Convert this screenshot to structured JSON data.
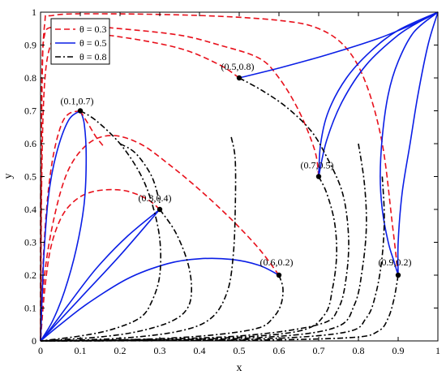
{
  "chart_data": {
    "type": "line",
    "title": "",
    "xlabel": "x",
    "ylabel": "y",
    "xlim": [
      0,
      1
    ],
    "ylim": [
      0,
      1
    ],
    "xticks": [
      0,
      0.1,
      0.2,
      0.3,
      0.4,
      0.5,
      0.6,
      0.7,
      0.8,
      0.9,
      1
    ],
    "yticks": [
      0,
      0.1,
      0.2,
      0.3,
      0.4,
      0.5,
      0.6,
      0.7,
      0.8,
      0.9,
      1
    ],
    "xtick_labels": [
      "0",
      "0.1",
      "0.2",
      "0.3",
      "0.4",
      "0.5",
      "0.6",
      "0.7",
      "0.8",
      "0.9",
      "1"
    ],
    "ytick_labels": [
      "0",
      "0.1",
      "0.2",
      "0.3",
      "0.4",
      "0.5",
      "0.6",
      "0.7",
      "0.8",
      "0.9",
      "1"
    ],
    "grid": false,
    "legend": {
      "position": "top-left",
      "entries": [
        {
          "label": "θ = 0.3",
          "color": "#e8101b",
          "style": "dashed"
        },
        {
          "label": "θ = 0.5",
          "color": "#0a1ee6",
          "style": "solid"
        },
        {
          "label": "θ = 0.8",
          "color": "#000000",
          "style": "dashdot"
        }
      ]
    },
    "points": [
      {
        "x": 0.1,
        "y": 0.7,
        "label": "(0.1,0.7)"
      },
      {
        "x": 0.3,
        "y": 0.4,
        "label": "(0.3,0.4)"
      },
      {
        "x": 0.5,
        "y": 0.8,
        "label": "(0.5,0.8)"
      },
      {
        "x": 0.6,
        "y": 0.2,
        "label": "(0.6,0.2)"
      },
      {
        "x": 0.7,
        "y": 0.5,
        "label": "(0.7,0.5)"
      },
      {
        "x": 0.9,
        "y": 0.2,
        "label": "(0.9,0.2)"
      }
    ],
    "series": [
      {
        "theta": 0.3,
        "color": "#e8101b",
        "style": "dashed",
        "curves": [
          [
            [
              0.1,
              0.7
            ],
            [
              0.07,
              0.69
            ],
            [
              0.05,
              0.65
            ],
            [
              0.03,
              0.55
            ],
            [
              0.015,
              0.4
            ],
            [
              0.005,
              0.2
            ],
            [
              0,
              0
            ]
          ],
          [
            [
              0.3,
              0.4
            ],
            [
              0.27,
              0.43
            ],
            [
              0.22,
              0.455
            ],
            [
              0.17,
              0.46
            ],
            [
              0.12,
              0.45
            ],
            [
              0.08,
              0.42
            ],
            [
              0.05,
              0.37
            ],
            [
              0.025,
              0.28
            ],
            [
              0.01,
              0.15
            ],
            [
              0,
              0
            ]
          ],
          [
            [
              0.6,
              0.2
            ],
            [
              0.55,
              0.28
            ],
            [
              0.48,
              0.37
            ],
            [
              0.4,
              0.46
            ],
            [
              0.32,
              0.54
            ],
            [
              0.25,
              0.6
            ],
            [
              0.18,
              0.625
            ],
            [
              0.12,
              0.6
            ],
            [
              0.07,
              0.52
            ],
            [
              0.035,
              0.38
            ],
            [
              0.01,
              0.2
            ],
            [
              0,
              0
            ]
          ],
          [
            [
              0.5,
              0.8
            ],
            [
              0.45,
              0.84
            ],
            [
              0.35,
              0.89
            ],
            [
              0.2,
              0.925
            ],
            [
              0.1,
              0.935
            ],
            [
              0.05,
              0.93
            ],
            [
              0.025,
              0.9
            ],
            [
              0.01,
              0.78
            ],
            [
              0.003,
              0.5
            ],
            [
              0,
              0
            ]
          ],
          [
            [
              0.7,
              0.5
            ],
            [
              0.69,
              0.58
            ],
            [
              0.65,
              0.7
            ],
            [
              0.6,
              0.8
            ],
            [
              0.55,
              0.86
            ],
            [
              0.45,
              0.9
            ],
            [
              0.35,
              0.93
            ],
            [
              0.2,
              0.95
            ],
            [
              0.08,
              0.96
            ],
            [
              0.03,
              0.955
            ],
            [
              0.01,
              0.93
            ],
            [
              0.003,
              0.8
            ],
            [
              0,
              0.4
            ],
            [
              0,
              0
            ]
          ],
          [
            [
              0.9,
              0.2
            ],
            [
              0.885,
              0.36
            ],
            [
              0.86,
              0.6
            ],
            [
              0.82,
              0.78
            ],
            [
              0.77,
              0.89
            ],
            [
              0.7,
              0.95
            ],
            [
              0.6,
              0.975
            ],
            [
              0.4,
              0.99
            ],
            [
              0.15,
              0.995
            ],
            [
              0.03,
              0.99
            ],
            [
              0.01,
              0.96
            ],
            [
              0.003,
              0.7
            ],
            [
              0,
              0
            ]
          ]
        ]
      },
      {
        "theta": 0.5,
        "color": "#0a1ee6",
        "style": "solid",
        "curves": [
          [
            [
              0.1,
              0.7
            ],
            [
              0.11,
              0.66
            ],
            [
              0.115,
              0.56
            ],
            [
              0.11,
              0.42
            ],
            [
              0.09,
              0.28
            ],
            [
              0.06,
              0.15
            ],
            [
              0.03,
              0.06
            ],
            [
              0,
              0
            ]
          ],
          [
            [
              0.1,
              0.7
            ],
            [
              0.07,
              0.67
            ],
            [
              0.04,
              0.57
            ],
            [
              0.02,
              0.44
            ],
            [
              0.008,
              0.25
            ],
            [
              0,
              0
            ]
          ],
          [
            [
              0.3,
              0.4
            ],
            [
              0.2,
              0.26
            ],
            [
              0.1,
              0.13
            ],
            [
              0,
              0
            ]
          ],
          [
            [
              0.3,
              0.4
            ],
            [
              0.22,
              0.32
            ],
            [
              0.14,
              0.22
            ],
            [
              0.07,
              0.11
            ],
            [
              0.03,
              0.045
            ],
            [
              0,
              0
            ]
          ],
          [
            [
              0.6,
              0.2
            ],
            [
              0.55,
              0.23
            ],
            [
              0.48,
              0.248
            ],
            [
              0.4,
              0.25
            ],
            [
              0.32,
              0.235
            ],
            [
              0.22,
              0.19
            ],
            [
              0.12,
              0.115
            ],
            [
              0.05,
              0.05
            ],
            [
              0,
              0
            ]
          ],
          [
            [
              0.5,
              0.8
            ],
            [
              0.6,
              0.83
            ],
            [
              0.72,
              0.87
            ],
            [
              0.85,
              0.92
            ],
            [
              0.95,
              0.97
            ],
            [
              1,
              1
            ]
          ],
          [
            [
              0.7,
              0.5
            ],
            [
              0.72,
              0.61
            ],
            [
              0.76,
              0.73
            ],
            [
              0.82,
              0.84
            ],
            [
              0.9,
              0.93
            ],
            [
              0.96,
              0.975
            ],
            [
              1,
              1
            ]
          ],
          [
            [
              0.7,
              0.5
            ],
            [
              0.705,
              0.6
            ],
            [
              0.725,
              0.7
            ],
            [
              0.77,
              0.8
            ],
            [
              0.83,
              0.88
            ],
            [
              0.9,
              0.945
            ],
            [
              1,
              1
            ]
          ],
          [
            [
              0.9,
              0.2
            ],
            [
              0.89,
              0.24
            ],
            [
              0.875,
              0.3
            ],
            [
              0.86,
              0.4
            ],
            [
              0.855,
              0.5
            ],
            [
              0.86,
              0.62
            ],
            [
              0.875,
              0.75
            ],
            [
              0.9,
              0.85
            ],
            [
              0.94,
              0.94
            ],
            [
              1,
              1
            ]
          ],
          [
            [
              0.9,
              0.2
            ],
            [
              0.9,
              0.3
            ],
            [
              0.91,
              0.45
            ],
            [
              0.93,
              0.6
            ],
            [
              0.95,
              0.75
            ],
            [
              0.975,
              0.9
            ],
            [
              1,
              1
            ]
          ]
        ]
      },
      {
        "theta": 0.8,
        "color": "#000000",
        "style": "dashdot",
        "curves": [
          [
            [
              0.1,
              0.7
            ],
            [
              0.14,
              0.67
            ],
            [
              0.2,
              0.6
            ],
            [
              0.25,
              0.51
            ],
            [
              0.28,
              0.42
            ],
            [
              0.3,
              0.31
            ],
            [
              0.3,
              0.2
            ],
            [
              0.28,
              0.12
            ],
            [
              0.25,
              0.07
            ],
            [
              0.18,
              0.035
            ],
            [
              0.1,
              0.015
            ],
            [
              0,
              0
            ]
          ],
          [
            [
              0.3,
              0.4
            ],
            [
              0.34,
              0.33
            ],
            [
              0.37,
              0.24
            ],
            [
              0.38,
              0.16
            ],
            [
              0.37,
              0.1
            ],
            [
              0.33,
              0.06
            ],
            [
              0.25,
              0.03
            ],
            [
              0.15,
              0.012
            ],
            [
              0,
              0
            ]
          ],
          [
            [
              0.5,
              0.8
            ],
            [
              0.56,
              0.76
            ],
            [
              0.62,
              0.71
            ],
            [
              0.68,
              0.64
            ],
            [
              0.72,
              0.56
            ],
            [
              0.76,
              0.45
            ],
            [
              0.775,
              0.32
            ],
            [
              0.77,
              0.2
            ],
            [
              0.75,
              0.1
            ],
            [
              0.7,
              0.05
            ],
            [
              0.5,
              0.015
            ],
            [
              0.2,
              0.003
            ],
            [
              0,
              0
            ]
          ],
          [
            [
              0.7,
              0.5
            ],
            [
              0.72,
              0.45
            ],
            [
              0.74,
              0.36
            ],
            [
              0.745,
              0.26
            ],
            [
              0.735,
              0.16
            ],
            [
              0.715,
              0.08
            ],
            [
              0.65,
              0.03
            ],
            [
              0.45,
              0.008
            ],
            [
              0.2,
              0.002
            ],
            [
              0,
              0
            ]
          ],
          [
            [
              0.6,
              0.2
            ],
            [
              0.61,
              0.16
            ],
            [
              0.605,
              0.11
            ],
            [
              0.585,
              0.07
            ],
            [
              0.55,
              0.04
            ],
            [
              0.45,
              0.02
            ],
            [
              0.3,
              0.007
            ],
            [
              0.1,
              0.001
            ],
            [
              0,
              0
            ]
          ],
          [
            [
              0.9,
              0.2
            ],
            [
              0.89,
              0.13
            ],
            [
              0.875,
              0.07
            ],
            [
              0.85,
              0.03
            ],
            [
              0.78,
              0.01
            ],
            [
              0.5,
              0.002
            ],
            [
              0,
              0
            ]
          ]
        ]
      }
    ],
    "extra_curves": [
      {
        "color": "#e8101b",
        "style": "dashed",
        "points": [
          [
            0.1,
            0.7
          ],
          [
            0.12,
            0.66
          ],
          [
            0.14,
            0.62
          ],
          [
            0.16,
            0.59
          ]
        ]
      },
      {
        "color": "#000000",
        "style": "dashdot",
        "points": [
          [
            0.48,
            0.62
          ],
          [
            0.49,
            0.55
          ],
          [
            0.49,
            0.4
          ],
          [
            0.485,
            0.26
          ],
          [
            0.47,
            0.15
          ],
          [
            0.43,
            0.07
          ],
          [
            0.35,
            0.03
          ],
          [
            0.2,
            0.008
          ],
          [
            0,
            0
          ]
        ]
      },
      {
        "color": "#000000",
        "style": "dashdot",
        "points": [
          [
            0.86,
            0.5
          ],
          [
            0.865,
            0.38
          ],
          [
            0.86,
            0.26
          ],
          [
            0.845,
            0.15
          ],
          [
            0.82,
            0.07
          ],
          [
            0.76,
            0.025
          ],
          [
            0.5,
            0.004
          ],
          [
            0,
            0
          ]
        ]
      },
      {
        "color": "#000000",
        "style": "dashdot",
        "points": [
          [
            0.8,
            0.6
          ],
          [
            0.815,
            0.48
          ],
          [
            0.82,
            0.35
          ],
          [
            0.81,
            0.22
          ],
          [
            0.79,
            0.11
          ],
          [
            0.74,
            0.04
          ],
          [
            0.55,
            0.01
          ],
          [
            0.2,
            0.001
          ],
          [
            0,
            0
          ]
        ]
      },
      {
        "color": "#000000",
        "style": "dashdot",
        "points": [
          [
            0.2,
            0.6
          ],
          [
            0.24,
            0.57
          ],
          [
            0.28,
            0.5
          ],
          [
            0.3,
            0.42
          ]
        ]
      }
    ]
  }
}
